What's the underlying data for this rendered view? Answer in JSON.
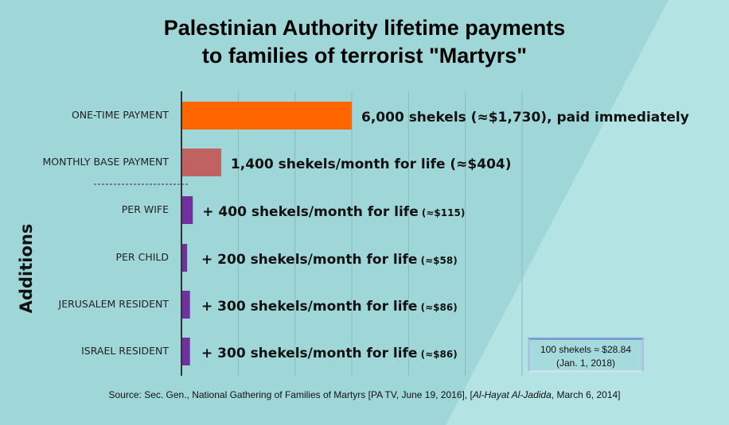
{
  "title": {
    "line1": "Palestinian Authority lifetime payments",
    "line2": "to families of terrorist \"Martyrs\""
  },
  "chart_data": {
    "type": "bar",
    "orientation": "horizontal",
    "title": "Palestinian Authority lifetime payments to families of terrorist \"Martyrs\"",
    "ylabel": "Additions",
    "xlabel": "",
    "xlim": [
      0,
      12000
    ],
    "grid": true,
    "categories": [
      "ONE-TIME PAYMENT",
      "MONTHLY BASE PAYMENT",
      "PER WIFE",
      "PER CHILD",
      "JERUSALEM RESIDENT",
      "ISRAEL RESIDENT"
    ],
    "values": [
      6000,
      1400,
      400,
      200,
      300,
      300
    ],
    "colors": [
      "#ff6600",
      "#c0625f",
      "#7030a0",
      "#7030a0",
      "#7030a0",
      "#7030a0"
    ],
    "data_labels": [
      {
        "main": "6,000 shekels (≈$1,730), paid immediately",
        "small": ""
      },
      {
        "main": "1,400 shekels/month  for life (≈$404)",
        "small": ""
      },
      {
        "main": "+ 400 shekels/month  for life",
        "small": "(≈$115)"
      },
      {
        "main": "+ 200 shekels/month  for life",
        "small": "(≈$58)"
      },
      {
        "main": "+ 300 shekels/month  for life",
        "small": "(≈$86)"
      },
      {
        "main": "+ 300 shekels/month  for life",
        "small": "(≈$86)"
      }
    ]
  },
  "note": {
    "line1": "100 shekels ≈ $28.84",
    "line2": "(Jan. 1, 2018)"
  },
  "source": {
    "prefix": "Source: Sec. Gen., National Gathering of Families of Martyrs [PA TV, June 19,  2016],  [",
    "italic": "Al-Hayat Al-Jadida",
    "suffix": ", March 6, 2014]"
  },
  "colors": {
    "background": "#9fd7d8",
    "light": "#b4e3e3"
  }
}
